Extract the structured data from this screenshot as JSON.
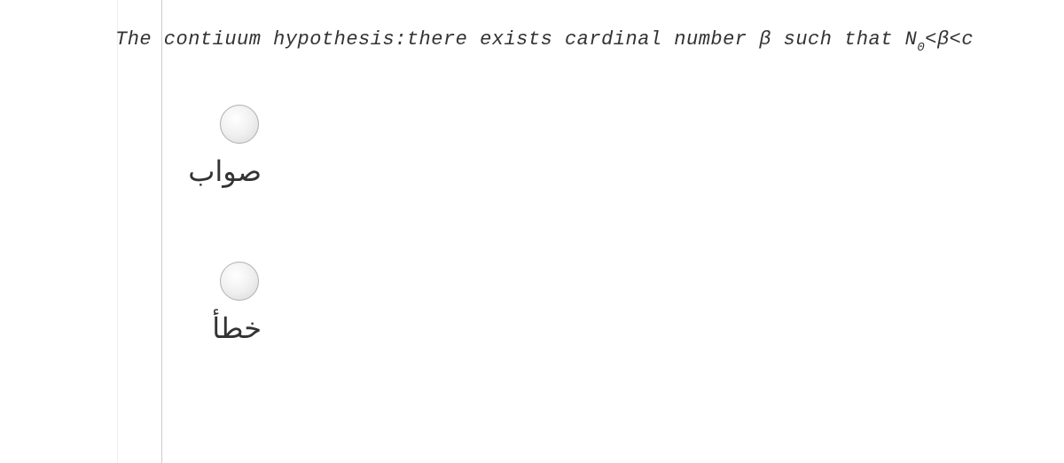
{
  "question": {
    "text_prefix": "The contiuum hypothesis:there exists cardinal number β such that N",
    "subscript": "0",
    "text_suffix": "<β<c"
  },
  "options": [
    {
      "label": "صواب"
    },
    {
      "label": "خطأ"
    }
  ],
  "colors": {
    "text": "#333333",
    "line": "#cccccc",
    "radio_border": "#b0b0b0",
    "background": "#ffffff"
  },
  "typography": {
    "question_fontsize": 22,
    "question_style": "italic",
    "option_fontsize": 32
  }
}
